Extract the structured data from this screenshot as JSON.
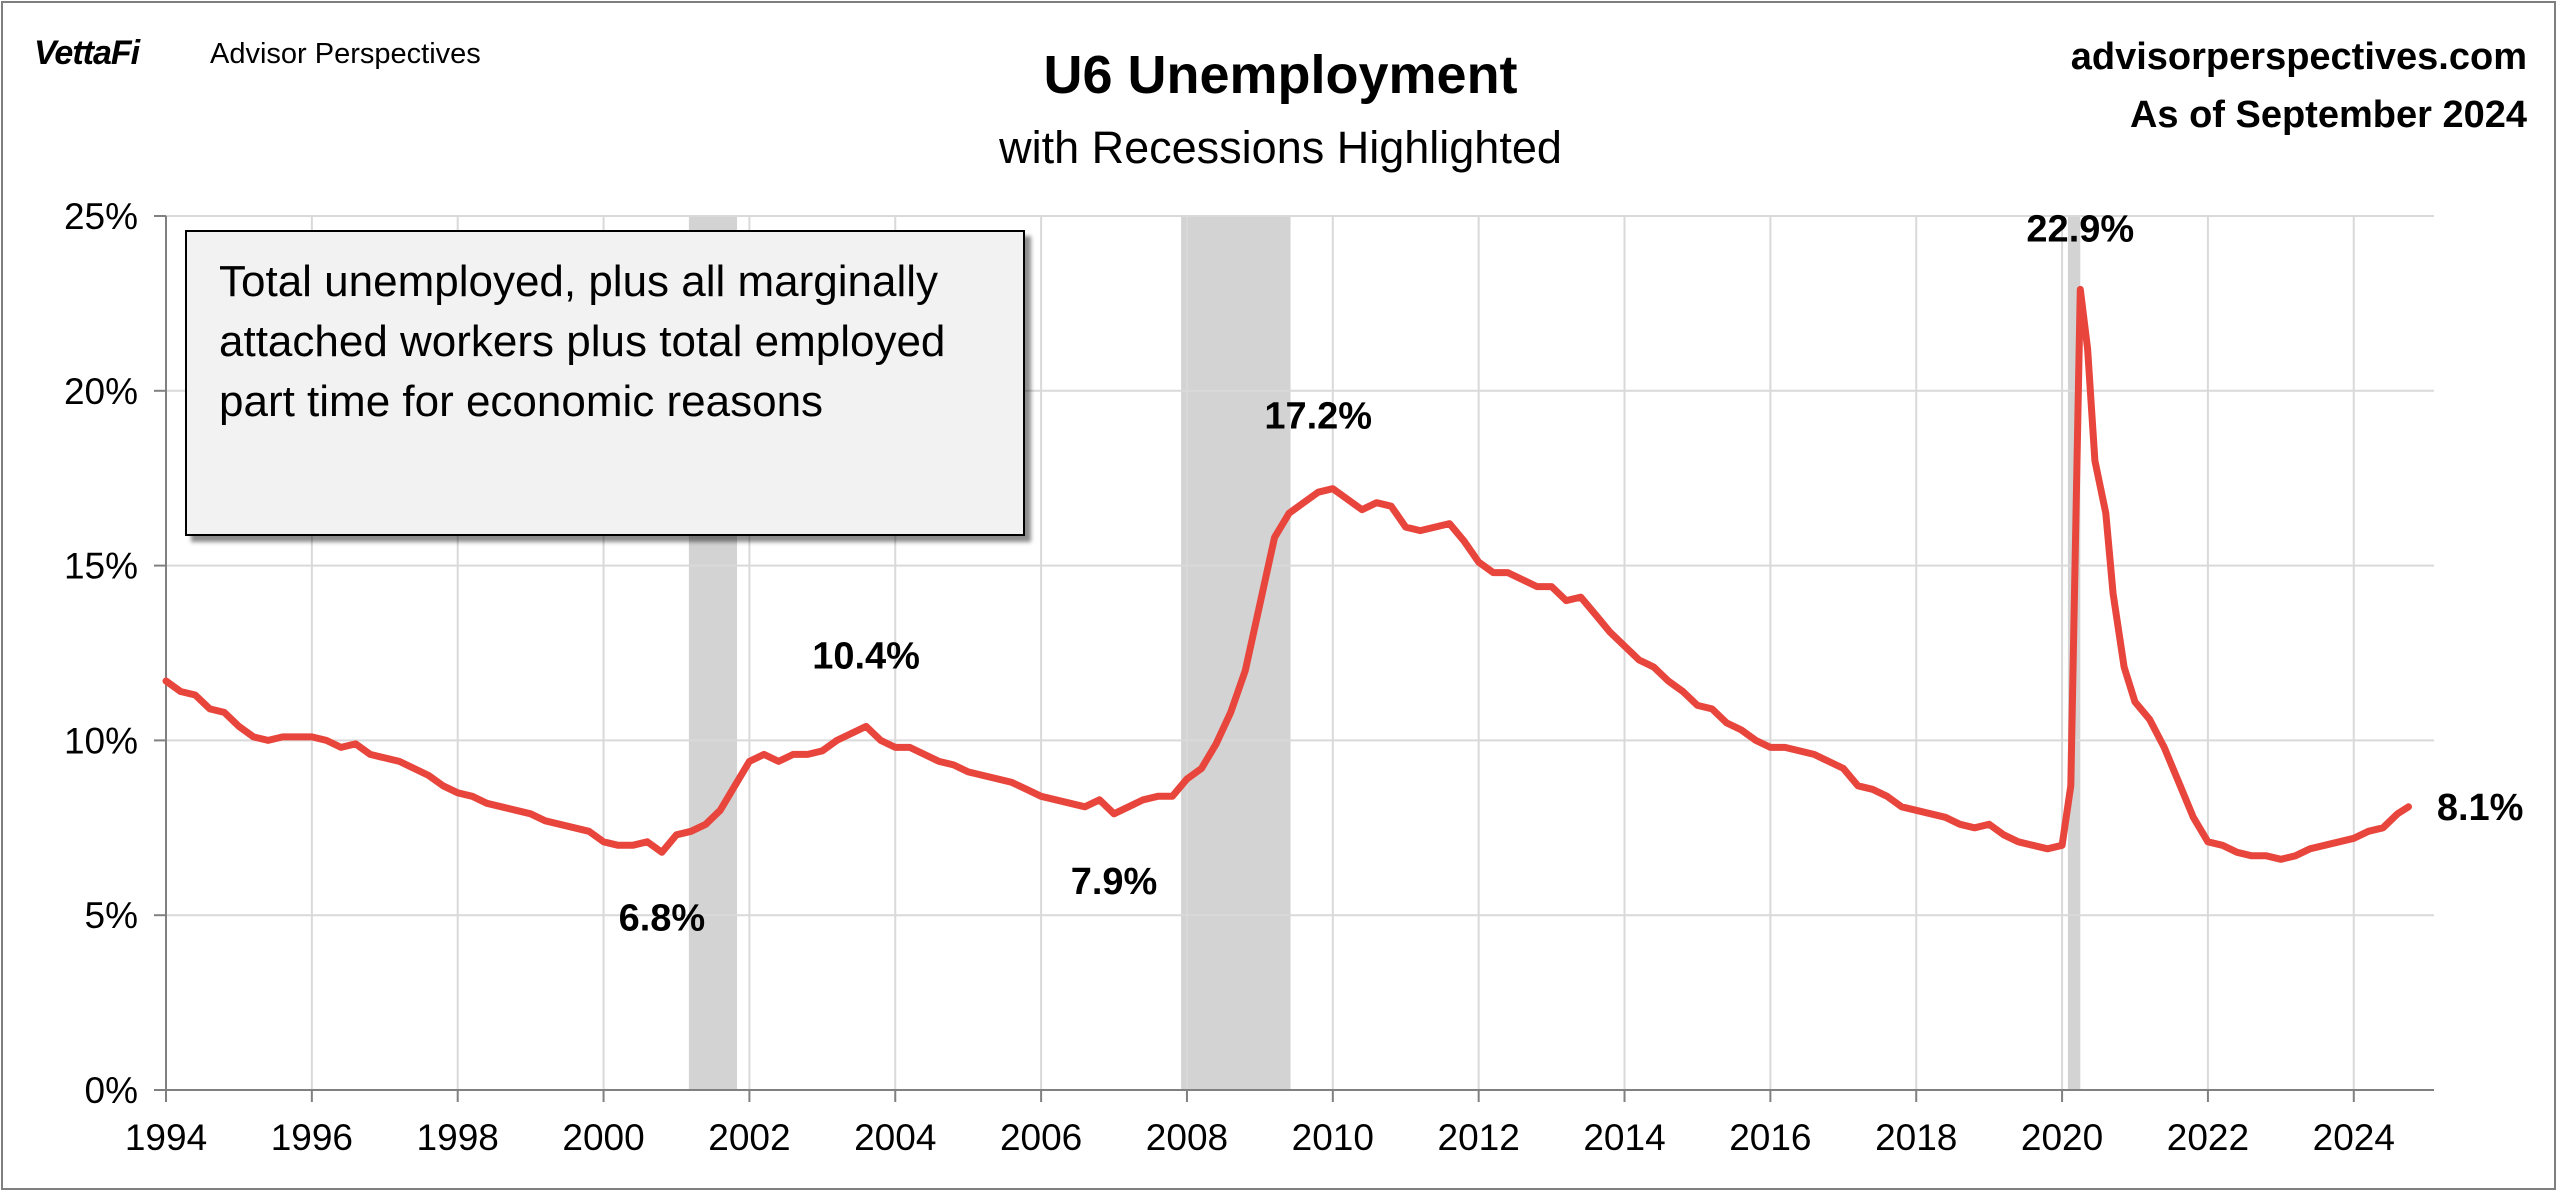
{
  "header": {
    "brand": "VettaFi",
    "brand_sub": "Advisor Perspectives",
    "site": "advisorperspectives.com",
    "as_of": "As of September 2024"
  },
  "chart_data": {
    "type": "line",
    "title": "U6 Unemployment",
    "subtitle": "with Recessions Highlighted",
    "xlabel": "",
    "ylabel": "",
    "xlim": [
      1994,
      2025.1
    ],
    "ylim": [
      0,
      25
    ],
    "x_ticks": [
      "1994",
      "1996",
      "1998",
      "2000",
      "2002",
      "2004",
      "2006",
      "2008",
      "2010",
      "2012",
      "2014",
      "2016",
      "2018",
      "2020",
      "2022",
      "2024"
    ],
    "y_ticks": [
      "0%",
      "5%",
      "10%",
      "15%",
      "20%",
      "25%"
    ],
    "grid": true,
    "recessions": [
      {
        "start": 2001.17,
        "end": 2001.83
      },
      {
        "start": 2007.92,
        "end": 2009.42
      },
      {
        "start": 2020.08,
        "end": 2020.25
      }
    ],
    "note": "Total unemployed, plus all marginally attached workers plus total employed part time for economic reasons",
    "annotations": [
      {
        "label": "6.8%",
        "x": 2000.8,
        "y": 6.8
      },
      {
        "label": "10.4%",
        "x": 2003.6,
        "y": 10.4
      },
      {
        "label": "7.9%",
        "x": 2007.0,
        "y": 7.9
      },
      {
        "label": "17.2%",
        "x": 2009.8,
        "y": 17.2
      },
      {
        "label": "22.9%",
        "x": 2020.25,
        "y": 22.9
      },
      {
        "label": "8.1%",
        "x": 2024.7,
        "y": 8.1
      }
    ],
    "series": [
      {
        "color": "#e8453c",
        "points": [
          [
            1994.0,
            11.7
          ],
          [
            1994.2,
            11.4
          ],
          [
            1994.4,
            11.3
          ],
          [
            1994.6,
            10.9
          ],
          [
            1994.8,
            10.8
          ],
          [
            1995.0,
            10.4
          ],
          [
            1995.2,
            10.1
          ],
          [
            1995.4,
            10.0
          ],
          [
            1995.6,
            10.1
          ],
          [
            1995.8,
            10.1
          ],
          [
            1996.0,
            10.1
          ],
          [
            1996.2,
            10.0
          ],
          [
            1996.4,
            9.8
          ],
          [
            1996.6,
            9.9
          ],
          [
            1996.8,
            9.6
          ],
          [
            1997.0,
            9.5
          ],
          [
            1997.2,
            9.4
          ],
          [
            1997.4,
            9.2
          ],
          [
            1997.6,
            9.0
          ],
          [
            1997.8,
            8.7
          ],
          [
            1998.0,
            8.5
          ],
          [
            1998.2,
            8.4
          ],
          [
            1998.4,
            8.2
          ],
          [
            1998.6,
            8.1
          ],
          [
            1998.8,
            8.0
          ],
          [
            1999.0,
            7.9
          ],
          [
            1999.2,
            7.7
          ],
          [
            1999.4,
            7.6
          ],
          [
            1999.6,
            7.5
          ],
          [
            1999.8,
            7.4
          ],
          [
            2000.0,
            7.1
          ],
          [
            2000.2,
            7.0
          ],
          [
            2000.4,
            7.0
          ],
          [
            2000.6,
            7.1
          ],
          [
            2000.8,
            6.8
          ],
          [
            2001.0,
            7.3
          ],
          [
            2001.2,
            7.4
          ],
          [
            2001.4,
            7.6
          ],
          [
            2001.6,
            8.0
          ],
          [
            2001.8,
            8.7
          ],
          [
            2002.0,
            9.4
          ],
          [
            2002.2,
            9.6
          ],
          [
            2002.4,
            9.4
          ],
          [
            2002.6,
            9.6
          ],
          [
            2002.8,
            9.6
          ],
          [
            2003.0,
            9.7
          ],
          [
            2003.2,
            10.0
          ],
          [
            2003.4,
            10.2
          ],
          [
            2003.6,
            10.4
          ],
          [
            2003.8,
            10.0
          ],
          [
            2004.0,
            9.8
          ],
          [
            2004.2,
            9.8
          ],
          [
            2004.4,
            9.6
          ],
          [
            2004.6,
            9.4
          ],
          [
            2004.8,
            9.3
          ],
          [
            2005.0,
            9.1
          ],
          [
            2005.2,
            9.0
          ],
          [
            2005.4,
            8.9
          ],
          [
            2005.6,
            8.8
          ],
          [
            2005.8,
            8.6
          ],
          [
            2006.0,
            8.4
          ],
          [
            2006.2,
            8.3
          ],
          [
            2006.4,
            8.2
          ],
          [
            2006.6,
            8.1
          ],
          [
            2006.8,
            8.3
          ],
          [
            2007.0,
            7.9
          ],
          [
            2007.2,
            8.1
          ],
          [
            2007.4,
            8.3
          ],
          [
            2007.6,
            8.4
          ],
          [
            2007.8,
            8.4
          ],
          [
            2008.0,
            8.9
          ],
          [
            2008.2,
            9.2
          ],
          [
            2008.4,
            9.9
          ],
          [
            2008.6,
            10.8
          ],
          [
            2008.8,
            12.0
          ],
          [
            2009.0,
            13.9
          ],
          [
            2009.2,
            15.8
          ],
          [
            2009.4,
            16.5
          ],
          [
            2009.6,
            16.8
          ],
          [
            2009.8,
            17.1
          ],
          [
            2010.0,
            17.2
          ],
          [
            2010.2,
            16.9
          ],
          [
            2010.4,
            16.6
          ],
          [
            2010.6,
            16.8
          ],
          [
            2010.8,
            16.7
          ],
          [
            2011.0,
            16.1
          ],
          [
            2011.2,
            16.0
          ],
          [
            2011.4,
            16.1
          ],
          [
            2011.6,
            16.2
          ],
          [
            2011.8,
            15.7
          ],
          [
            2012.0,
            15.1
          ],
          [
            2012.2,
            14.8
          ],
          [
            2012.4,
            14.8
          ],
          [
            2012.6,
            14.6
          ],
          [
            2012.8,
            14.4
          ],
          [
            2013.0,
            14.4
          ],
          [
            2013.2,
            14.0
          ],
          [
            2013.4,
            14.1
          ],
          [
            2013.6,
            13.6
          ],
          [
            2013.8,
            13.1
          ],
          [
            2014.0,
            12.7
          ],
          [
            2014.2,
            12.3
          ],
          [
            2014.4,
            12.1
          ],
          [
            2014.6,
            11.7
          ],
          [
            2014.8,
            11.4
          ],
          [
            2015.0,
            11.0
          ],
          [
            2015.2,
            10.9
          ],
          [
            2015.4,
            10.5
          ],
          [
            2015.6,
            10.3
          ],
          [
            2015.8,
            10.0
          ],
          [
            2016.0,
            9.8
          ],
          [
            2016.2,
            9.8
          ],
          [
            2016.4,
            9.7
          ],
          [
            2016.6,
            9.6
          ],
          [
            2016.8,
            9.4
          ],
          [
            2017.0,
            9.2
          ],
          [
            2017.2,
            8.7
          ],
          [
            2017.4,
            8.6
          ],
          [
            2017.6,
            8.4
          ],
          [
            2017.8,
            8.1
          ],
          [
            2018.0,
            8.0
          ],
          [
            2018.2,
            7.9
          ],
          [
            2018.4,
            7.8
          ],
          [
            2018.6,
            7.6
          ],
          [
            2018.8,
            7.5
          ],
          [
            2019.0,
            7.6
          ],
          [
            2019.2,
            7.3
          ],
          [
            2019.4,
            7.1
          ],
          [
            2019.6,
            7.0
          ],
          [
            2019.8,
            6.9
          ],
          [
            2020.0,
            7.0
          ],
          [
            2020.12,
            8.7
          ],
          [
            2020.25,
            22.9
          ],
          [
            2020.35,
            21.2
          ],
          [
            2020.45,
            18.0
          ],
          [
            2020.6,
            16.5
          ],
          [
            2020.7,
            14.2
          ],
          [
            2020.85,
            12.1
          ],
          [
            2021.0,
            11.1
          ],
          [
            2021.2,
            10.6
          ],
          [
            2021.4,
            9.8
          ],
          [
            2021.6,
            8.8
          ],
          [
            2021.8,
            7.8
          ],
          [
            2022.0,
            7.1
          ],
          [
            2022.2,
            7.0
          ],
          [
            2022.4,
            6.8
          ],
          [
            2022.6,
            6.7
          ],
          [
            2022.8,
            6.7
          ],
          [
            2023.0,
            6.6
          ],
          [
            2023.2,
            6.7
          ],
          [
            2023.4,
            6.9
          ],
          [
            2023.6,
            7.0
          ],
          [
            2023.8,
            7.1
          ],
          [
            2024.0,
            7.2
          ],
          [
            2024.2,
            7.4
          ],
          [
            2024.4,
            7.5
          ],
          [
            2024.6,
            7.9
          ],
          [
            2024.75,
            8.1
          ]
        ]
      }
    ]
  }
}
